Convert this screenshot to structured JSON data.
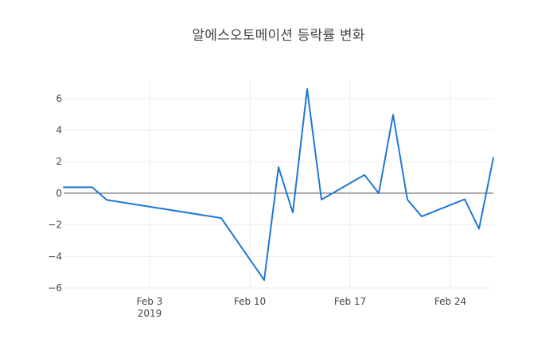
{
  "chart_data": {
    "type": "line",
    "title": "알에스오토메이션 등락률 변화",
    "xlabel": "",
    "ylabel": "",
    "x": [
      "2019-01-28",
      "2019-01-29",
      "2019-01-30",
      "2019-01-31",
      "2019-02-08",
      "2019-02-11",
      "2019-02-12",
      "2019-02-13",
      "2019-02-14",
      "2019-02-15",
      "2019-02-18",
      "2019-02-19",
      "2019-02-20",
      "2019-02-21",
      "2019-02-22",
      "2019-02-25",
      "2019-02-26",
      "2019-02-27"
    ],
    "series": [
      {
        "name": "",
        "color": "#1f77d4",
        "values": [
          0.38,
          0.38,
          0.38,
          -0.42,
          -1.57,
          -5.5,
          1.65,
          -1.22,
          6.6,
          -0.4,
          1.16,
          0.0,
          4.97,
          -0.4,
          -1.47,
          -0.38,
          -2.25,
          2.24
        ]
      }
    ],
    "xlim": [
      "2019-01-28",
      "2019-02-27"
    ],
    "ylim": [
      -6.2,
      7.2
    ],
    "y_ticks": [
      -6,
      -4,
      -2,
      0,
      2,
      4,
      6
    ],
    "x_ticks": [
      {
        "date": "2019-02-03",
        "label": "Feb 3",
        "sublabel": "2019"
      },
      {
        "date": "2019-02-10",
        "label": "Feb 10",
        "sublabel": ""
      },
      {
        "date": "2019-02-17",
        "label": "Feb 17",
        "sublabel": ""
      },
      {
        "date": "2019-02-24",
        "label": "Feb 24",
        "sublabel": ""
      }
    ],
    "grid": true,
    "zero_line": true,
    "legend": "none"
  }
}
